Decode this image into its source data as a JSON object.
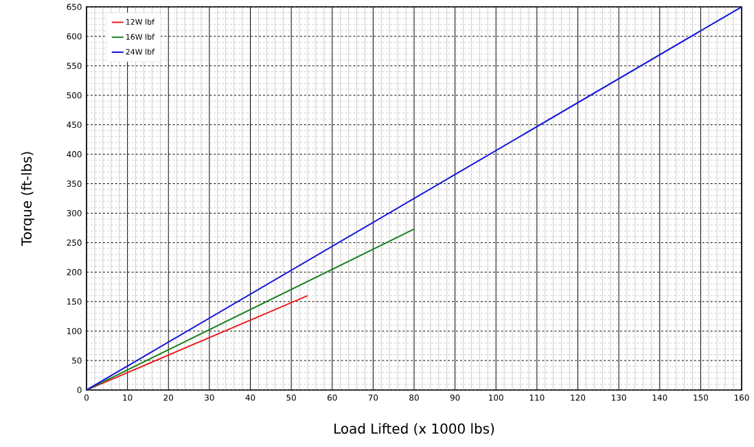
{
  "chart_data": {
    "type": "line",
    "xlabel": "Load Lifted (x 1000 lbs)",
    "ylabel": "Torque (ft-lbs)",
    "series": [
      {
        "name": "12W lbf",
        "color": "#ee1c1c",
        "x": [
          0,
          54
        ],
        "values": [
          0,
          160
        ]
      },
      {
        "name": "16W lbf",
        "color": "#1a7f1a",
        "x": [
          0,
          80
        ],
        "values": [
          0,
          273
        ]
      },
      {
        "name": "24W lbf",
        "color": "#1414dd",
        "x": [
          0,
          160
        ],
        "values": [
          0,
          650
        ]
      }
    ],
    "xlim": [
      0,
      160
    ],
    "ylim": [
      0,
      650
    ],
    "xticks": [
      0,
      10,
      20,
      30,
      40,
      50,
      60,
      70,
      80,
      90,
      100,
      110,
      120,
      130,
      140,
      150,
      160
    ],
    "yticks": [
      0,
      50,
      100,
      150,
      200,
      250,
      300,
      350,
      400,
      450,
      500,
      550,
      600,
      650
    ],
    "grid": true,
    "legend": "top left",
    "marker": "none",
    "line_style": "solid"
  }
}
